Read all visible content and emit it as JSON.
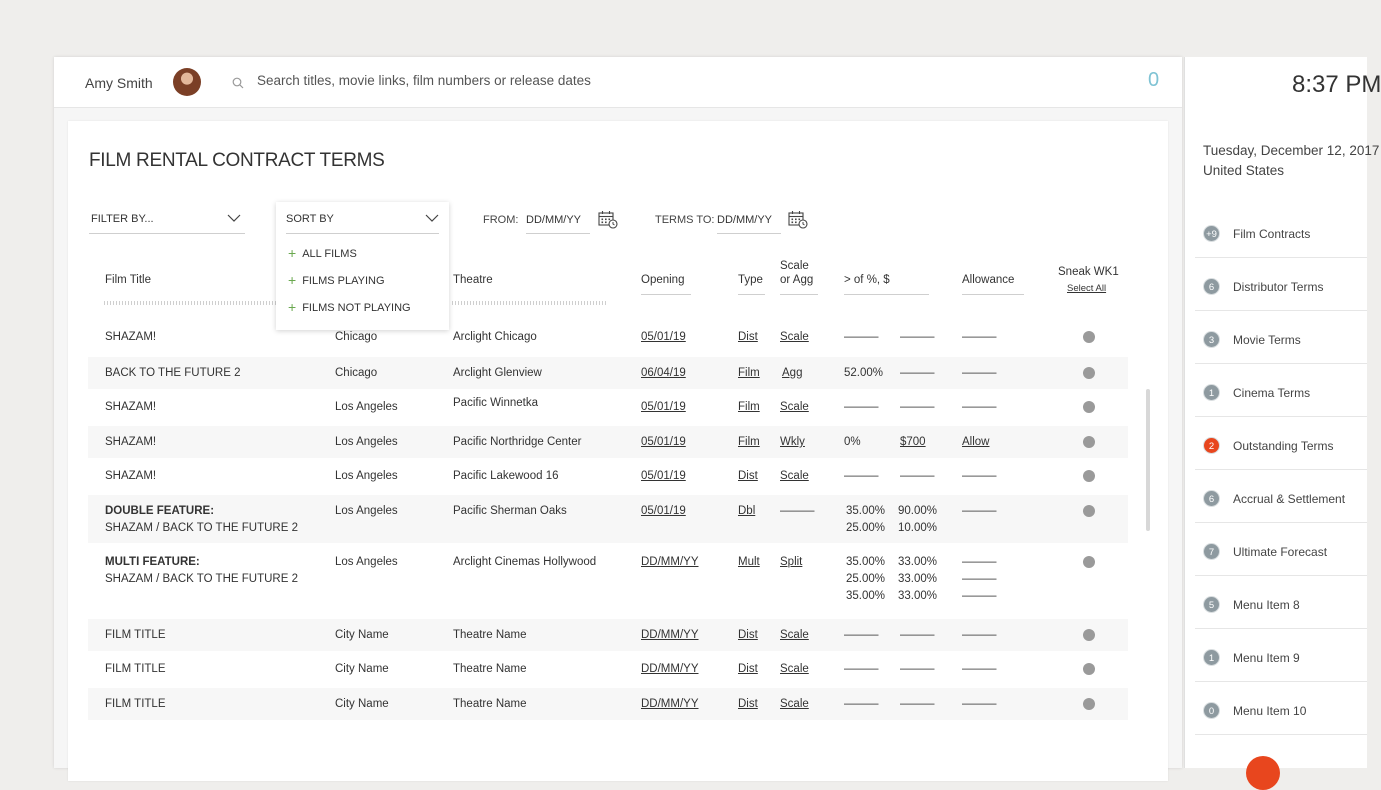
{
  "header": {
    "user_name": "Amy Smith",
    "search_placeholder": "Search titles, movie links, film numbers or release dates",
    "count": "0"
  },
  "page_title": "FILM RENTAL CONTRACT TERMS",
  "filter": {
    "label": "FILTER BY..."
  },
  "sort": {
    "label": "SORT BY",
    "options": [
      "ALL FILMS",
      "FILMS PLAYING",
      "FILMS NOT PLAYING"
    ]
  },
  "from": {
    "label": "FROM:",
    "value": "DD/MM/YY"
  },
  "terms_to": {
    "label": "TERMS TO:",
    "value": "DD/MM/YY"
  },
  "columns": {
    "film_title": "Film Title",
    "theatre": "Theatre",
    "opening": "Opening",
    "type": "Type",
    "scale_1": "Scale",
    "scale_2": "or Agg",
    "pct": "> of %, $",
    "allowance": "Allowance",
    "sneak": "Sneak WK1",
    "select_all": "Select All"
  },
  "rows": [
    {
      "title": "SHAZAM!",
      "city": "Chicago",
      "theatre": "Arclight Chicago",
      "opening": "05/01/19",
      "type": "Dist",
      "scale": "Scale",
      "pct1": "———",
      "pct2": "———",
      "allow": "———"
    },
    {
      "title": "BACK TO THE FUTURE 2",
      "city": "Chicago",
      "theatre": "Arclight Glenview",
      "opening": "06/04/19",
      "type": "Film",
      "scale": "Agg ",
      "pct1": "52.00%",
      "pct2": "———",
      "allow": "———"
    },
    {
      "title": "SHAZAM!",
      "city": "Los Angeles",
      "theatre": "Pacific Winnetka",
      "opening": "05/01/19",
      "type": "Film",
      "scale": "Scale",
      "pct1": "———",
      "pct2": "———",
      "allow": "———"
    },
    {
      "title": "SHAZAM!",
      "city": "Los Angeles",
      "theatre": "Pacific Northridge Center",
      "opening": "05/01/19",
      "type": "Film",
      "scale": "Wkly ",
      "pct1": "0%",
      "pct2": "$700 ",
      "allow": "Allow"
    },
    {
      "title": "SHAZAM!",
      "city": "Los Angeles",
      "theatre": "Pacific Lakewood 16",
      "opening": "05/01/19",
      "type": "Dist",
      "scale": "Scale",
      "pct1": "———",
      "pct2": "———",
      "allow": "———"
    },
    {
      "title_bold": "DOUBLE FEATURE:",
      "title": "SHAZAM / BACK TO THE FUTURE 2",
      "city": "Los Angeles",
      "theatre": "Pacific Sherman Oaks",
      "opening": "05/01/19",
      "type": "Dbl",
      "scale": "———",
      "pct1": [
        "35.00%",
        "25.00%"
      ],
      "pct2": [
        "90.00%",
        "10.00%"
      ],
      "allow": [
        "———"
      ]
    },
    {
      "title_bold": "MULTI FEATURE:",
      "title": "SHAZAM / BACK TO THE FUTURE 2",
      "city": "Los Angeles",
      "theatre": "Arclight Cinemas Hollywood",
      "opening": "DD/MM/YY",
      "type": "Mult",
      "scale": "Split",
      "pct1": [
        "35.00%",
        "25.00%",
        "35.00%"
      ],
      "pct2": [
        "33.00%",
        "33.00%",
        "33.00%"
      ],
      "allow": [
        "———",
        "———",
        "———"
      ]
    },
    {
      "title": "FILM TITLE",
      "city": "City Name",
      "theatre": "Theatre Name",
      "opening": "DD/MM/YY",
      "type": "Dist",
      "scale": "Scale",
      "pct1": "———",
      "pct2": "———",
      "allow": "———"
    },
    {
      "title": "FILM TITLE",
      "city": "City Name",
      "theatre": "Theatre Name",
      "opening": "DD/MM/YY",
      "type": "Dist",
      "scale": "Scale",
      "pct1": "———",
      "pct2": "———",
      "allow": "———"
    },
    {
      "title": "FILM TITLE",
      "city": "City Name",
      "theatre": "Theatre Name",
      "opening": "DD/MM/YY",
      "type": "Dist",
      "scale": "Scale",
      "pct1": "———",
      "pct2": "———",
      "allow": "———"
    }
  ],
  "side": {
    "time": "8:37 PM",
    "date": "Tuesday, December 12, 2017",
    "country": "United States",
    "items": [
      {
        "badge": "+9",
        "label": "Film Contracts",
        "alert": false
      },
      {
        "badge": "6",
        "label": "Distributor Terms",
        "alert": false
      },
      {
        "badge": "3",
        "label": "Movie Terms",
        "alert": false
      },
      {
        "badge": "1",
        "label": "Cinema Terms",
        "alert": false
      },
      {
        "badge": "2",
        "label": "Outstanding Terms",
        "alert": true
      },
      {
        "badge": "6",
        "label": "Accrual & Settlement",
        "alert": false
      },
      {
        "badge": "7",
        "label": "Ultimate Forecast",
        "alert": false
      },
      {
        "badge": "5",
        "label": "Menu Item 8",
        "alert": false
      },
      {
        "badge": "1",
        "label": "Menu Item 9",
        "alert": false
      },
      {
        "badge": "0",
        "label": "Menu Item 10",
        "alert": false
      }
    ]
  },
  "colors": {
    "accent": "#e8461e",
    "count": "#7fc3d4",
    "badge": "#8e9aa0",
    "plus": "#6aa84f"
  }
}
